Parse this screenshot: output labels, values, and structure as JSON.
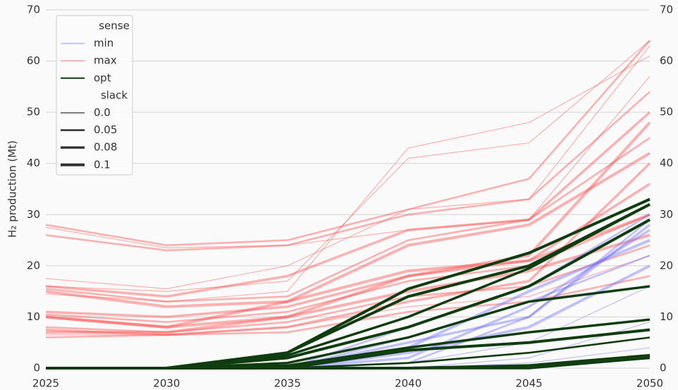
{
  "chart_data": {
    "type": "line",
    "y_label": "H₂ production (Mt)",
    "x": [
      2025,
      2030,
      2035,
      2040,
      2045,
      2050
    ],
    "xlim": [
      2025,
      2050
    ],
    "xticks": [
      2025,
      2030,
      2035,
      2040,
      2045,
      2050
    ],
    "ylim": [
      0,
      70
    ],
    "yticks": [
      0,
      10,
      20,
      30,
      40,
      50,
      60,
      70
    ],
    "y2lim": [
      0,
      70
    ],
    "y2ticks": [
      0,
      10,
      20,
      30,
      40,
      50,
      60,
      70
    ],
    "grid": true,
    "legend_position": "upper left",
    "legend": {
      "sense_title": "sense",
      "sense": [
        {
          "name": "min",
          "color": "#6a6aff"
        },
        {
          "name": "max",
          "color": "#ff4040"
        },
        {
          "name": "opt",
          "color": "#0f3d0f"
        }
      ],
      "slack_title": "slack",
      "slack": [
        {
          "value": 0,
          "label": "0.0"
        },
        0.05,
        0.08,
        0.1
      ]
    },
    "series": [
      {
        "sense": "max",
        "slack": 0.05,
        "values": [
          28,
          24,
          25,
          31,
          37,
          64
        ]
      },
      {
        "sense": "max",
        "slack": 0,
        "values": [
          27.5,
          23.5,
          24,
          27,
          29,
          57
        ]
      },
      {
        "sense": "max",
        "slack": 0.05,
        "values": [
          26,
          23,
          24,
          30,
          33,
          54
        ]
      },
      {
        "sense": "max",
        "slack": 0,
        "values": [
          17.5,
          15.5,
          20,
          31,
          33,
          63
        ]
      },
      {
        "sense": "max",
        "slack": 0.08,
        "values": [
          16,
          14,
          18,
          27,
          29,
          50
        ]
      },
      {
        "sense": "max",
        "slack": 0.05,
        "values": [
          15.5,
          13,
          14,
          25,
          29,
          45
        ]
      },
      {
        "sense": "max",
        "slack": 0.1,
        "values": [
          15,
          12,
          13,
          24,
          28,
          42
        ]
      },
      {
        "sense": "max",
        "slack": 0,
        "values": [
          16,
          15,
          17,
          41,
          44,
          64
        ]
      },
      {
        "sense": "max",
        "slack": 0,
        "values": [
          14.5,
          13,
          15,
          43,
          48,
          61
        ]
      },
      {
        "sense": "max",
        "slack": 0.08,
        "values": [
          11,
          10,
          12,
          18,
          21,
          36
        ]
      },
      {
        "sense": "max",
        "slack": 0.05,
        "values": [
          10.5,
          9,
          11,
          17,
          20,
          30
        ]
      },
      {
        "sense": "max",
        "slack": 0.1,
        "values": [
          10,
          8,
          10,
          15,
          19,
          26
        ]
      },
      {
        "sense": "max",
        "slack": 0.05,
        "values": [
          8,
          7,
          9,
          14,
          16,
          24
        ]
      },
      {
        "sense": "max",
        "slack": 0.08,
        "values": [
          7.5,
          6.5,
          8,
          13,
          17,
          40
        ]
      },
      {
        "sense": "max",
        "slack": 0.1,
        "values": [
          7,
          7,
          10,
          18,
          22,
          48
        ]
      },
      {
        "sense": "max",
        "slack": 0,
        "values": [
          6.5,
          6.5,
          8,
          12,
          14,
          22
        ]
      },
      {
        "sense": "max",
        "slack": 0.05,
        "values": [
          6,
          6.5,
          7,
          11,
          13,
          18
        ]
      },
      {
        "sense": "max",
        "slack": 0.1,
        "values": [
          10,
          8,
          13,
          19,
          21,
          30
        ]
      },
      {
        "sense": "min",
        "slack": 0.05,
        "values": [
          0,
          0,
          0,
          1,
          10,
          29
        ]
      },
      {
        "sense": "min",
        "slack": 0.08,
        "values": [
          0,
          0,
          0,
          2,
          12,
          27
        ]
      },
      {
        "sense": "min",
        "slack": 0.1,
        "values": [
          0,
          0,
          0,
          4,
          15,
          25
        ]
      },
      {
        "sense": "min",
        "slack": 0.05,
        "values": [
          0,
          0,
          0,
          6,
          13,
          22
        ]
      },
      {
        "sense": "min",
        "slack": 0.1,
        "values": [
          0,
          0,
          0,
          3,
          8,
          20
        ]
      },
      {
        "sense": "min",
        "slack": 0,
        "values": [
          0,
          0,
          0,
          1,
          5,
          16
        ]
      },
      {
        "sense": "min",
        "slack": 0,
        "values": [
          0,
          0,
          0,
          0,
          2,
          9
        ]
      },
      {
        "sense": "min",
        "slack": 0,
        "values": [
          0,
          0,
          0,
          0,
          1,
          4
        ]
      },
      {
        "sense": "min",
        "slack": 0.08,
        "values": [
          0,
          0,
          0,
          5,
          10,
          28
        ]
      },
      {
        "sense": "min",
        "slack": 0.05,
        "values": [
          0,
          0,
          0,
          8,
          16,
          30
        ]
      },
      {
        "sense": "opt",
        "slack": 0.1,
        "values": [
          0,
          0,
          3,
          15.5,
          22.5,
          33
        ]
      },
      {
        "sense": "opt",
        "slack": 0.1,
        "values": [
          0,
          0,
          3,
          14,
          20,
          32
        ]
      },
      {
        "sense": "opt",
        "slack": 0.08,
        "values": [
          0,
          0,
          2.5,
          10,
          19.5,
          32
        ]
      },
      {
        "sense": "opt",
        "slack": 0.1,
        "values": [
          0,
          0,
          2,
          8,
          16,
          29
        ]
      },
      {
        "sense": "opt",
        "slack": 0.08,
        "values": [
          0,
          0,
          1,
          6,
          13,
          16
        ]
      },
      {
        "sense": "opt",
        "slack": 0.08,
        "values": [
          0,
          0,
          0.5,
          4,
          7,
          9.5
        ]
      },
      {
        "sense": "opt",
        "slack": 0.1,
        "values": [
          0,
          0,
          0,
          3.5,
          5,
          7.5
        ]
      },
      {
        "sense": "opt",
        "slack": 0.05,
        "values": [
          0,
          0,
          0,
          1,
          3,
          6
        ]
      },
      {
        "sense": "opt",
        "slack": 0.1,
        "values": [
          0,
          0,
          0,
          0,
          0.5,
          2.5
        ]
      },
      {
        "sense": "opt",
        "slack": 0.08,
        "values": [
          0,
          0,
          0,
          0,
          0,
          2
        ]
      }
    ]
  }
}
